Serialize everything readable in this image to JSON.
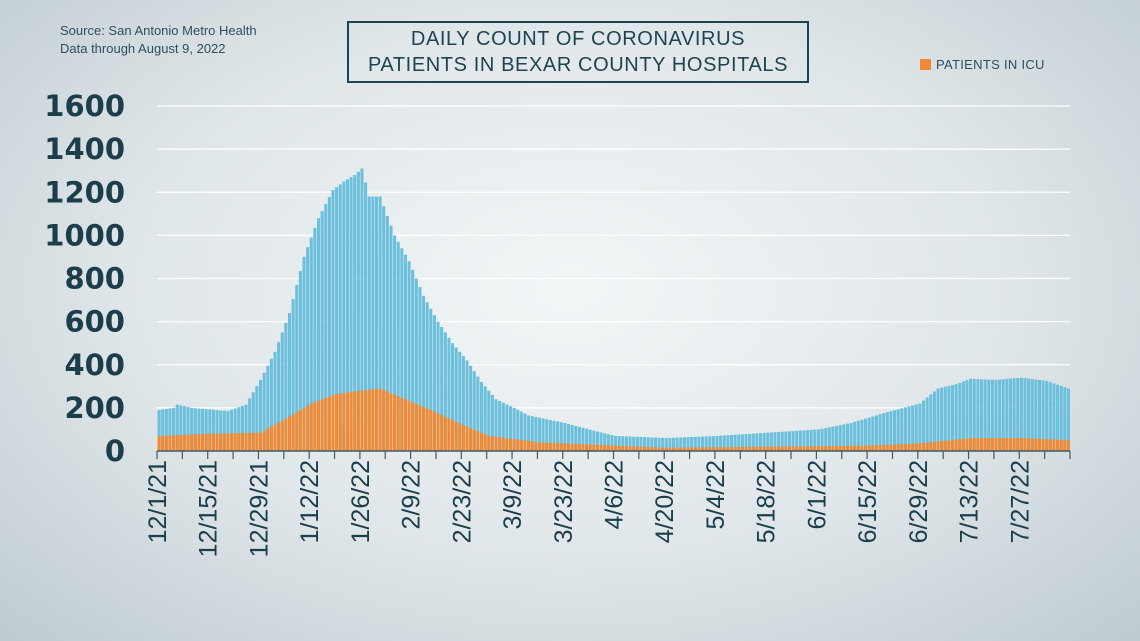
{
  "source": {
    "line1": "Source: San Antonio Metro Health",
    "line2": "Data through August 9, 2022"
  },
  "title": {
    "line1": "DAILY COUNT OF CORONAVIRUS",
    "line2": "PATIENTS IN BEXAR COUNTY HOSPITALS"
  },
  "legend": {
    "label": "PATIENTS IN ICU",
    "color": "#f08a35"
  },
  "colors": {
    "total_bar": "#6cc0dc",
    "icu_bar": "#f08a35",
    "axis": "#3e5a66",
    "grid": "#ffffff"
  },
  "chart_data": {
    "type": "bar",
    "stacked": true,
    "x_start": "12/1/21",
    "x_end": "8/9/22",
    "y_ticks": [
      0,
      200,
      400,
      600,
      800,
      1000,
      1200,
      1400,
      1600
    ],
    "ylim": [
      0,
      1600
    ],
    "x_ticks": [
      "12/1/21",
      "12/15/21",
      "12/29/21",
      "1/12/22",
      "1/26/22",
      "2/9/22",
      "2/23/22",
      "3/9/22",
      "3/23/22",
      "4/6/22",
      "4/20/22",
      "5/4/22",
      "5/18/22",
      "6/1/22",
      "6/15/22",
      "6/29/22",
      "7/13/22",
      "7/27/22"
    ],
    "grid": true,
    "legend_position": "top-right",
    "series": [
      {
        "name": "",
        "description_total": true,
        "keypoints": [
          [
            "12/1/21",
            190
          ],
          [
            "12/5/21",
            200
          ],
          [
            "12/6/21",
            215
          ],
          [
            "12/10/21",
            200
          ],
          [
            "12/20/21",
            185
          ],
          [
            "12/25/21",
            215
          ],
          [
            "12/29/21",
            330
          ],
          [
            "1/2/22",
            460
          ],
          [
            "1/6/22",
            640
          ],
          [
            "1/10/22",
            900
          ],
          [
            "1/14/22",
            1080
          ],
          [
            "1/18/22",
            1210
          ],
          [
            "1/21/22",
            1250
          ],
          [
            "1/24/22",
            1280
          ],
          [
            "1/26/22",
            1310
          ],
          [
            "1/28/22",
            1180
          ],
          [
            "1/31/22",
            1180
          ],
          [
            "2/4/22",
            1000
          ],
          [
            "2/8/22",
            880
          ],
          [
            "2/12/22",
            720
          ],
          [
            "2/16/22",
            600
          ],
          [
            "2/20/22",
            500
          ],
          [
            "2/24/22",
            420
          ],
          [
            "2/28/22",
            320
          ],
          [
            "3/4/22",
            240
          ],
          [
            "3/9/22",
            200
          ],
          [
            "3/13/22",
            165
          ],
          [
            "3/23/22",
            130
          ],
          [
            "4/1/22",
            90
          ],
          [
            "4/6/22",
            70
          ],
          [
            "4/20/22",
            60
          ],
          [
            "5/4/22",
            70
          ],
          [
            "5/18/22",
            85
          ],
          [
            "6/1/22",
            100
          ],
          [
            "6/10/22",
            130
          ],
          [
            "6/20/22",
            180
          ],
          [
            "6/29/22",
            220
          ],
          [
            "7/4/22",
            290
          ],
          [
            "7/9/22",
            310
          ],
          [
            "7/13/22",
            335
          ],
          [
            "7/20/22",
            330
          ],
          [
            "7/27/22",
            340
          ],
          [
            "8/3/22",
            325
          ],
          [
            "8/9/22",
            290
          ]
        ]
      },
      {
        "name": "PATIENTS IN ICU",
        "keypoints": [
          [
            "12/1/21",
            70
          ],
          [
            "12/15/21",
            80
          ],
          [
            "12/29/21",
            85
          ],
          [
            "1/5/22",
            150
          ],
          [
            "1/12/22",
            220
          ],
          [
            "1/19/22",
            265
          ],
          [
            "1/26/22",
            280
          ],
          [
            "1/31/22",
            290
          ],
          [
            "2/7/22",
            240
          ],
          [
            "2/14/22",
            190
          ],
          [
            "2/23/22",
            120
          ],
          [
            "3/2/22",
            70
          ],
          [
            "3/16/22",
            40
          ],
          [
            "4/6/22",
            25
          ],
          [
            "4/20/22",
            15
          ],
          [
            "5/18/22",
            20
          ],
          [
            "6/15/22",
            25
          ],
          [
            "6/29/22",
            35
          ],
          [
            "7/13/22",
            60
          ],
          [
            "7/27/22",
            60
          ],
          [
            "8/9/22",
            50
          ]
        ]
      }
    ]
  }
}
